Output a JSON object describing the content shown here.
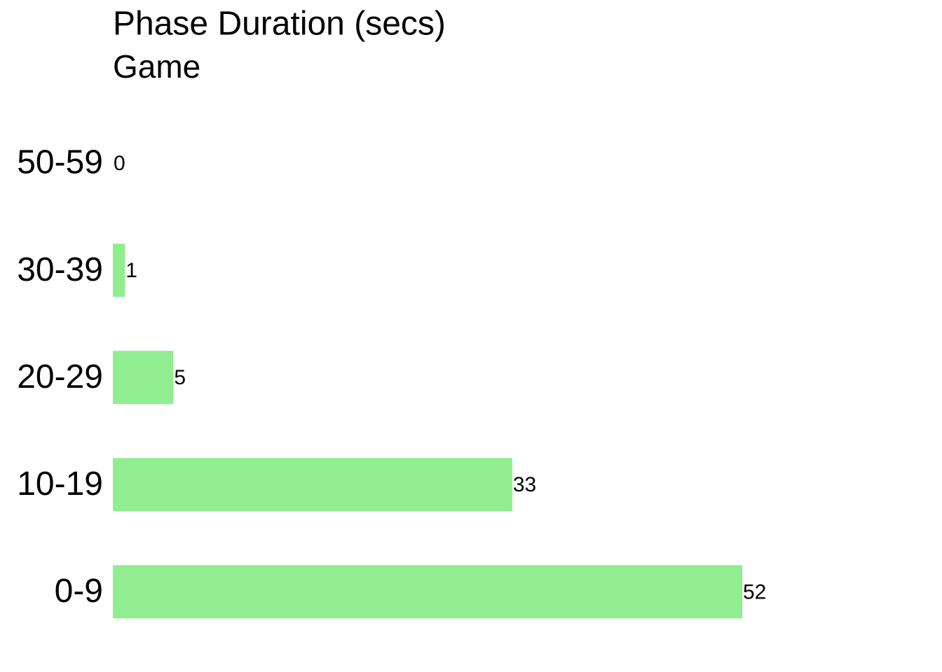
{
  "chart_data": {
    "type": "bar",
    "orientation": "horizontal",
    "title": "Phase Duration (secs)",
    "subtitle": "Game",
    "categories": [
      "50-59",
      "30-39",
      "20-29",
      "10-19",
      "0-9"
    ],
    "values": [
      0,
      1,
      5,
      33,
      52
    ],
    "color": "#90ee90"
  }
}
